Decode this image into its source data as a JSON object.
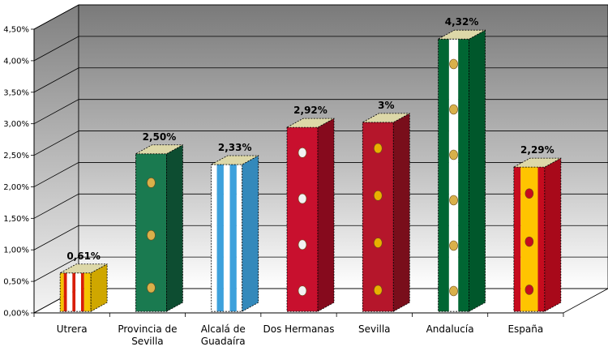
{
  "chart_data": {
    "type": "bar",
    "title": "",
    "xlabel": "",
    "ylabel": "",
    "ylim": [
      0,
      4.5
    ],
    "yticks": [
      "0,00%",
      "0,50%",
      "1,00%",
      "1,50%",
      "2,00%",
      "2,50%",
      "3,00%",
      "3,50%",
      "4,00%",
      "4,50%"
    ],
    "grid": true,
    "categories": [
      [
        "Utrera"
      ],
      [
        "Provincia de",
        "Sevilla"
      ],
      [
        "Alcalá de",
        "Guadaíra"
      ],
      [
        "Dos Hermanas"
      ],
      [
        "Sevilla"
      ],
      [
        "Andalucía"
      ],
      [
        "España"
      ]
    ],
    "values": [
      0.61,
      2.5,
      2.33,
      2.92,
      3.0,
      4.32,
      2.29
    ],
    "data_labels": [
      "0,61%",
      "2,50%",
      "2,33%",
      "2,92%",
      "3%",
      "4,32%",
      "2,29%"
    ],
    "bar_fills": [
      "Utrera flag (red and white vertical stripes)",
      "Provincia de Sevilla flag (green with coats of arms)",
      "Alcalá de Guadaíra flag (light blue and white stripes)",
      "Dos Hermanas flag (red with coats of arms)",
      "Sevilla flag (crimson with NO8DO emblem)",
      "Andalucía flag (green and white stripes)",
      "España flag (red and yellow with coat of arms)"
    ],
    "colors": {
      "utrera_red": "#d81e05",
      "utrera_white": "#ffffff",
      "utrera_yellow": "#f4c400",
      "provincia_green": "#1a7a50",
      "alcala_blue": "#3da1dc",
      "alcala_white": "#ffffff",
      "doshermanas_red": "#c8102e",
      "sevilla_crimson": "#b5162b",
      "andalucia_green": "#006633",
      "andalucia_white": "#ffffff",
      "espana_red": "#c60b1e",
      "espana_yellow": "#ffc400",
      "top_face": "#ddd8a8",
      "back_wall_top": "#7a7a7a",
      "back_wall_bottom": "#ffffff"
    }
  }
}
